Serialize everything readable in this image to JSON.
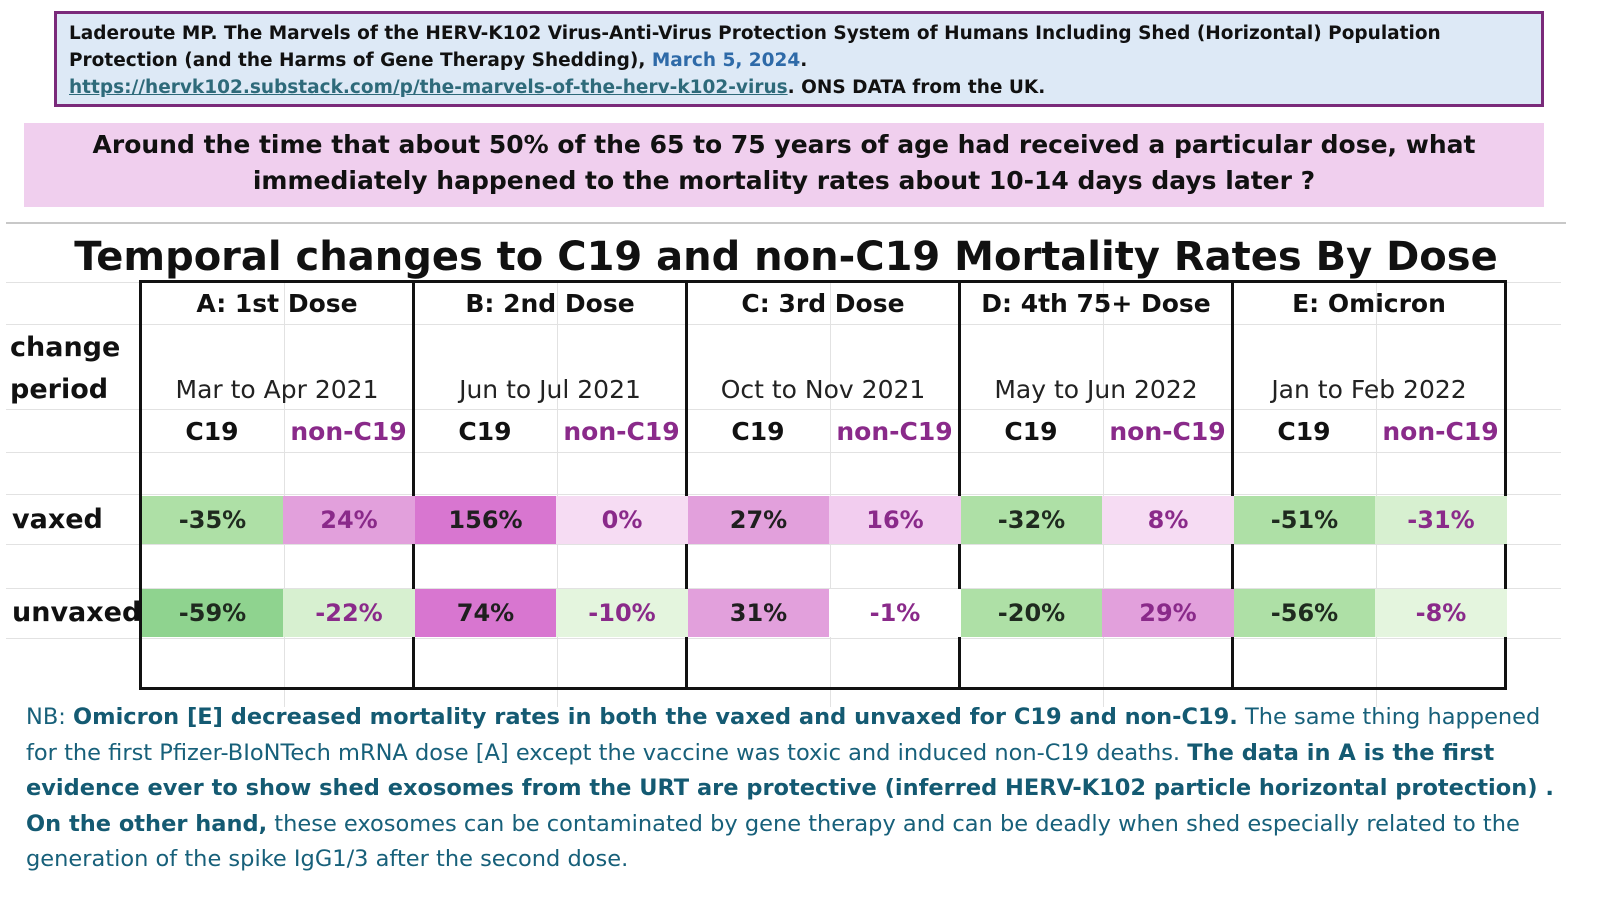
{
  "citation": {
    "text": "Laderoute MP. The Marvels of the HERV-K102 Virus-Anti-Virus Protection System of Humans Including Shed (Horizontal) Population Protection (and the Harms of Gene Therapy Shedding), ",
    "date": "March 5, 2024",
    "after_date": ".",
    "url": "https://hervk102.substack.com/p/the-marvels-of-the-herv-k102-virus",
    "suffix": ". ONS DATA from the UK."
  },
  "question": "Around the time that about 50% of the 65 to 75 years of age had received a particular dose, what immediately happened to the mortality rates about 10-14 days days later ?",
  "table": {
    "title": "Temporal  changes to C19 and non-C19 Mortality Rates By Dose",
    "change_label_1": "change",
    "change_label_2": "period",
    "sub_c19": "C19",
    "sub_non": "non-C19",
    "row_vaxed": "vaxed",
    "row_unvaxed": "unvaxed",
    "groups": [
      {
        "header": "A: 1st Dose",
        "period": "Mar to Apr  2021",
        "vaxed": [
          "-35%",
          "24%"
        ],
        "unvaxed": [
          "-59%",
          "-22%"
        ]
      },
      {
        "header": "B: 2nd Dose",
        "period": "Jun to Jul  2021",
        "vaxed": [
          "156%",
          "0%"
        ],
        "unvaxed": [
          "74%",
          "-10%"
        ]
      },
      {
        "header": "C: 3rd Dose",
        "period": "Oct to Nov  2021",
        "vaxed": [
          "27%",
          "16%"
        ],
        "unvaxed": [
          "31%",
          "-1%"
        ]
      },
      {
        "header": "D: 4th 75+ Dose",
        "period": "May to Jun  2022",
        "vaxed": [
          "-32%",
          "8%"
        ],
        "unvaxed": [
          "-20%",
          "29%"
        ]
      },
      {
        "header": "E: Omicron",
        "period": "Jan to Feb 2022",
        "vaxed": [
          "-51%",
          "-31%"
        ],
        "unvaxed": [
          "-56%",
          "-8%"
        ]
      }
    ],
    "colors": {
      "green_strong": "#8fd38f",
      "green_mid": "#aee0a6",
      "green_light": "#d7f0d0",
      "magenta_strong": "#d876d0",
      "magenta_mid": "#e2a0dc",
      "magenta_light": "#f2cdef",
      "magenta_faint": "#f6dcf3",
      "nonc19_text": "#8a2a8a"
    }
  },
  "note": {
    "p1": "NB: ",
    "p2": "Omicron [E] decreased mortality rates in both the vaxed and unvaxed for C19 and non-C19.",
    "p3": " The same thing happened for the first Pfizer-BIoNTech mRNA dose [A] except the vaccine was toxic and induced non-C19 deaths. ",
    "p4": "The data in A is the first evidence ever to show shed exosomes from the URT are protective (inferred HERV-K102 particle horizontal protection) .  On the other hand,",
    "p5": " these exosomes can be contaminated by gene therapy and can be deadly when shed especially related to the generation of the spike IgG1/3 after the second dose."
  }
}
